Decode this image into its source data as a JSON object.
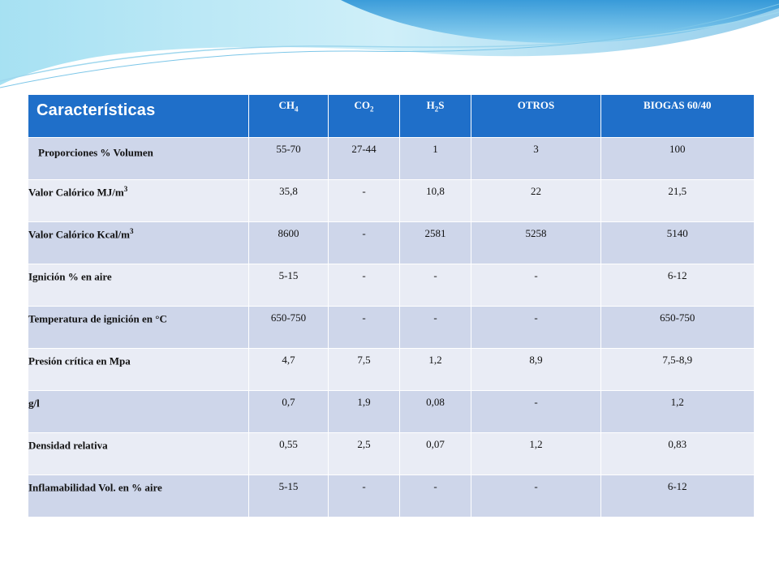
{
  "header": {
    "title": "Características",
    "columns": [
      {
        "base": "CH",
        "sub": "4",
        "rest": ""
      },
      {
        "base": "CO",
        "sub": "2",
        "rest": ""
      },
      {
        "base": "H",
        "sub": "2",
        "rest": "S"
      },
      {
        "base": "OTROS",
        "sub": "",
        "rest": ""
      },
      {
        "base": "BIOGAS 60/40",
        "sub": "",
        "rest": ""
      }
    ]
  },
  "rows": [
    {
      "label": "Proporciones % Volumen",
      "sup": "",
      "values": [
        "55-70",
        "27-44",
        "1",
        "3",
        "100"
      ]
    },
    {
      "label": "Valor Calórico MJ/m",
      "sup": "3",
      "values": [
        "35,8",
        "-",
        "10,8",
        "22",
        "21,5"
      ]
    },
    {
      "label": "Valor Calórico Kcal/m",
      "sup": "3",
      "values": [
        "8600",
        "-",
        "2581",
        "5258",
        "5140"
      ]
    },
    {
      "label": "Ignición % en aire",
      "sup": "",
      "values": [
        "5-15",
        "-",
        "-",
        "-",
        "6-12"
      ]
    },
    {
      "label": "Temperatura de ignición en °C",
      "sup": "",
      "values": [
        "650-750",
        "-",
        "-",
        "-",
        "650-750"
      ]
    },
    {
      "label": "Presión crítica en Mpa",
      "sup": "",
      "values": [
        "4,7",
        "7,5",
        "1,2",
        "8,9",
        "7,5-8,9"
      ]
    },
    {
      "label": "g/l",
      "sup": "",
      "values": [
        "0,7",
        "1,9",
        "0,08",
        "-",
        "1,2"
      ]
    },
    {
      "label": "Densidad relativa",
      "sup": "",
      "values": [
        "0,55",
        "2,5",
        "0,07",
        "1,2",
        "0,83"
      ]
    },
    {
      "label": "Inflamabilidad Vol. en % aire",
      "sup": "",
      "values": [
        "5-15",
        "-",
        "-",
        "-",
        "6-12"
      ]
    }
  ]
}
